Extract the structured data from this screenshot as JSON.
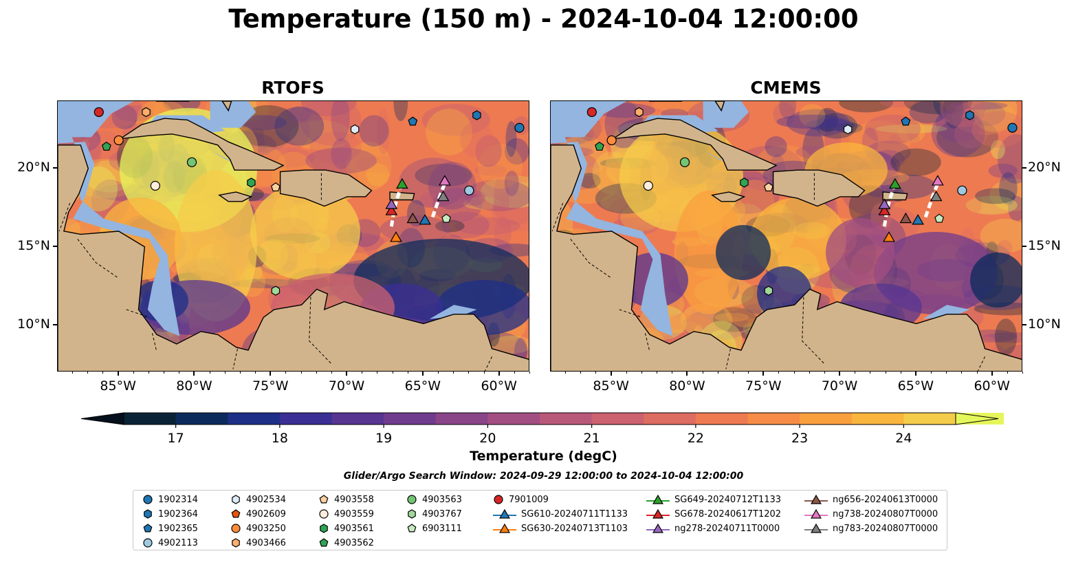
{
  "title": "Temperature (150 m) - 2024-10-04 12:00:00",
  "panels": [
    {
      "id": "rtofs",
      "title": "RTOFS"
    },
    {
      "id": "cmems",
      "title": "CMEMS"
    }
  ],
  "map_extent": {
    "lon": [
      -89,
      -58
    ],
    "lat": [
      7,
      24.3
    ]
  },
  "lon_ticks": [
    {
      "value": -85,
      "label": "85°W"
    },
    {
      "value": -80,
      "label": "80°W"
    },
    {
      "value": -75,
      "label": "75°W"
    },
    {
      "value": -70,
      "label": "70°W"
    },
    {
      "value": -65,
      "label": "65°W"
    },
    {
      "value": -60,
      "label": "60°W"
    }
  ],
  "lat_ticks": [
    {
      "value": 20,
      "label": "20°N"
    },
    {
      "value": 15,
      "label": "15°N"
    },
    {
      "value": 10,
      "label": "10°N"
    }
  ],
  "colorbar": {
    "label": "Temperature (degC)",
    "min": 16.5,
    "max": 24.5,
    "step": 0.5,
    "ticks": [
      {
        "value": 17,
        "label": "17"
      },
      {
        "value": 18,
        "label": "18"
      },
      {
        "value": 19,
        "label": "19"
      },
      {
        "value": 20,
        "label": "20"
      },
      {
        "value": 21,
        "label": "21"
      },
      {
        "value": 22,
        "label": "22"
      },
      {
        "value": 23,
        "label": "23"
      },
      {
        "value": 24,
        "label": "24"
      }
    ],
    "colors": [
      "#0a2236",
      "#0c2b5c",
      "#1e2f88",
      "#3b2f95",
      "#573591",
      "#6f3c8d",
      "#8a4588",
      "#a24e82",
      "#b95979",
      "#cc6270",
      "#dd6c62",
      "#ee7a52",
      "#f78c46",
      "#fa9f3e",
      "#f9b53d",
      "#f5cc4a",
      "#e6f55b"
    ],
    "under_color": "#04101c",
    "over_color": "#e4f85c"
  },
  "land_color": "#d2b48c",
  "shelf_color": "#93b5e0",
  "search_window": "Glider/Argo Search Window: 2024-09-29 12:00:00 to 2024-10-04 12:00:00",
  "platforms": [
    {
      "label": "1902314",
      "marker": "circle",
      "color": "#1f77b4",
      "lon": -58.7,
      "lat": 22.6
    },
    {
      "label": "1902364",
      "marker": "hexagon",
      "color": "#1f77b4",
      "lon": -61.5,
      "lat": 23.4
    },
    {
      "label": "1902365",
      "marker": "pentagon",
      "color": "#1f77b4",
      "lon": -65.7,
      "lat": 23.0
    },
    {
      "label": "4902113",
      "marker": "circle",
      "color": "#9ecae1",
      "lon": -62.0,
      "lat": 18.6
    },
    {
      "label": "4902534",
      "marker": "hexagon",
      "color": "#deebf7",
      "lon": -69.5,
      "lat": 22.5
    },
    {
      "label": "4902609",
      "marker": "pentagon",
      "color": "#e6550d",
      "lon": null,
      "lat": null
    },
    {
      "label": "4903250",
      "marker": "circle",
      "color": "#fd8d3c",
      "lon": -85.0,
      "lat": 21.8
    },
    {
      "label": "4903466",
      "marker": "hexagon",
      "color": "#fdae6b",
      "lon": -83.2,
      "lat": 23.6
    },
    {
      "label": "4903558",
      "marker": "pentagon",
      "color": "#fdd0a2",
      "lon": -74.7,
      "lat": 18.8
    },
    {
      "label": "4903559",
      "marker": "circle",
      "color": "#feedde",
      "lon": -82.6,
      "lat": 18.9
    },
    {
      "label": "4903561",
      "marker": "hexagon",
      "color": "#31a354",
      "lon": -76.3,
      "lat": 19.1
    },
    {
      "label": "4903562",
      "marker": "pentagon",
      "color": "#31a354",
      "lon": -85.8,
      "lat": 21.4
    },
    {
      "label": "4903563",
      "marker": "circle",
      "color": "#74c476",
      "lon": -80.2,
      "lat": 20.4
    },
    {
      "label": "4903767",
      "marker": "hexagon",
      "color": "#a1d99b",
      "lon": -74.7,
      "lat": 12.2
    },
    {
      "label": "6903111",
      "marker": "pentagon",
      "color": "#c7e9c0",
      "lon": -63.5,
      "lat": 16.8
    },
    {
      "label": "7901009",
      "marker": "circle",
      "color": "#d62728",
      "lon": -86.3,
      "lat": 23.6
    }
  ],
  "gliders": [
    {
      "label": "SG610-20240711T1133",
      "color": "#1f77b4",
      "lon": -64.9,
      "lat": 16.6
    },
    {
      "label": "SG630-20240713T1103",
      "color": "#ff7f0e",
      "lon": -66.8,
      "lat": 15.5
    },
    {
      "label": "SG649-20240712T1133",
      "color": "#2ca02c",
      "lon": -66.4,
      "lat": 18.9
    },
    {
      "label": "SG678-20240617T1202",
      "color": "#d62728",
      "lon": -67.1,
      "lat": 17.2
    },
    {
      "label": "ng278-20240711T0000",
      "color": "#9467bd",
      "lon": -67.1,
      "lat": 17.6
    },
    {
      "label": "ng656-20240613T0000",
      "color": "#8c564b",
      "lon": -65.7,
      "lat": 16.7
    },
    {
      "label": "ng738-20240807T0000",
      "color": "#e377c2",
      "lon": -63.6,
      "lat": 19.1
    },
    {
      "label": "ng783-20240807T0000",
      "color": "#7f7f7f",
      "lon": -63.7,
      "lat": 18.1
    }
  ]
}
